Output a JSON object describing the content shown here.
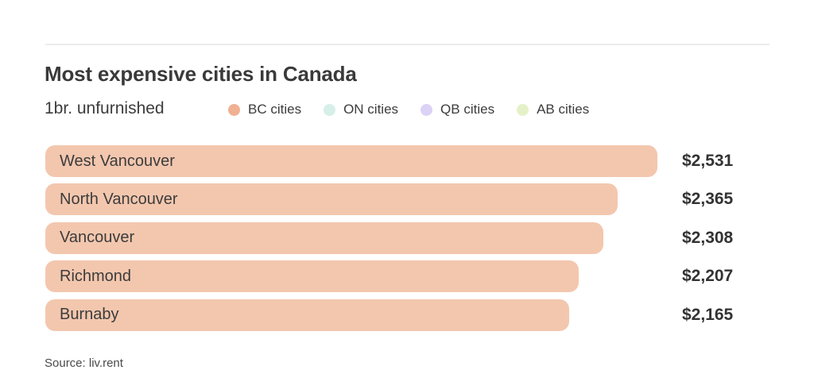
{
  "header": {
    "title": "Most expensive cities in Canada",
    "subtitle": "1br. unfurnished"
  },
  "legend": [
    {
      "label": "BC cities",
      "color": "#efb192"
    },
    {
      "label": "ON cities",
      "color": "#d6efe9"
    },
    {
      "label": "QB cities",
      "color": "#dcd2f6"
    },
    {
      "label": "AB cities",
      "color": "#e4f1c8"
    }
  ],
  "chart_data": {
    "type": "bar",
    "orientation": "horizontal",
    "title": "Most expensive cities in Canada",
    "subtitle": "1br. unfurnished",
    "categories": [
      "West Vancouver",
      "North Vancouver",
      "Vancouver",
      "Richmond",
      "Burnaby"
    ],
    "values": [
      2531,
      2365,
      2308,
      2207,
      2165
    ],
    "value_labels": [
      "$2,531",
      "$2,365",
      "$2,308",
      "$2,207",
      "$2,165"
    ],
    "series_group": "BC cities",
    "bar_color": "#f3c7ae",
    "xlim": [
      0,
      2531
    ],
    "grid": false,
    "legend_position": "top"
  },
  "source": "Source: liv.rent"
}
